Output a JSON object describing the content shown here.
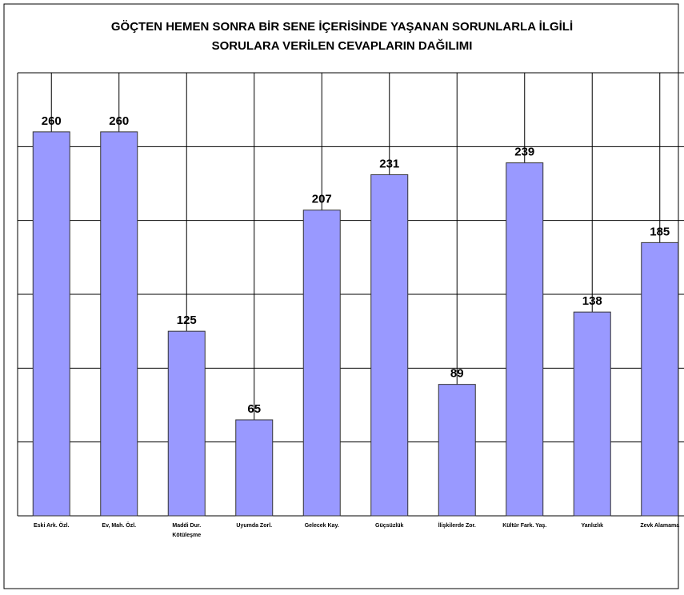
{
  "chart_data": {
    "type": "bar",
    "title": "GÖÇTEN HEMEN SONRA BİR SENE İÇERİSİNDE  YAŞANAN SORUNLARLA İLGİLİ\nSORULARA VERİLEN CEVAPLARIN DAĞILIMI",
    "categories": [
      "Eski Ark. Özl.",
      "Ev, Mah. Özl.",
      "Maddi Dur.\nKötüleşme",
      "Uyumda Zorl.",
      "Gelecek Kay.",
      "Güçsüzlük",
      "İlişkilerde Zor.",
      "Kültür Fark. Yaş.",
      "Yanlızlık",
      "Zevk Alamama"
    ],
    "values": [
      260,
      260,
      125,
      65,
      207,
      231,
      89,
      239,
      138,
      185
    ],
    "color": "#9999ff",
    "ylim": [
      0,
      300
    ],
    "yticks": [
      0,
      50,
      100,
      150,
      200,
      250,
      300
    ],
    "grid": true
  }
}
